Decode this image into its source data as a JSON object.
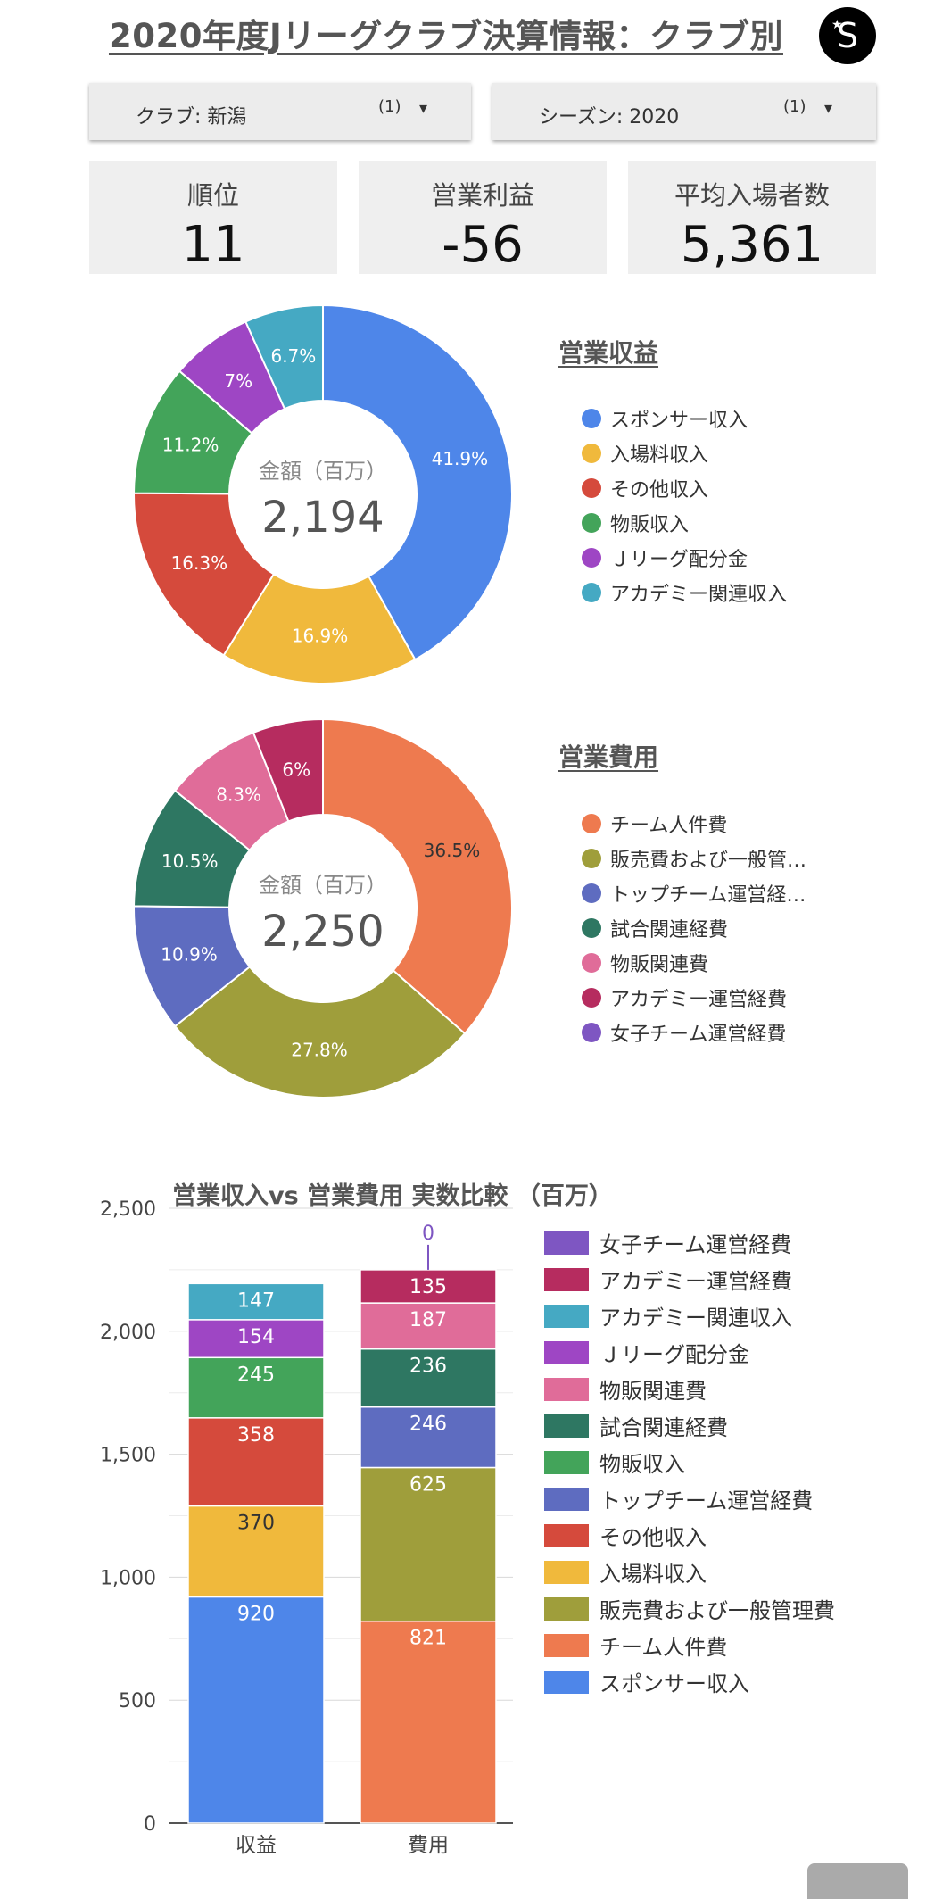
{
  "header": {
    "title": "2020年度Jリーグクラブ決算情報：クラブ別",
    "logo_letter": "S"
  },
  "filters": [
    {
      "label": "クラブ: 新潟",
      "count": "(1)",
      "arrow": "▾"
    },
    {
      "label": "シーズン: 2020",
      "count": "(1)",
      "arrow": "▾"
    }
  ],
  "kpis": [
    {
      "label": "順位",
      "value": "11"
    },
    {
      "label": "営業利益",
      "value": "-56"
    },
    {
      "label": "平均入場者数",
      "value": "5,361"
    }
  ],
  "chart_data": [
    {
      "type": "pie",
      "title": "営業収益",
      "center_label": "金額（百万）",
      "center_value": "2,194",
      "categories": [
        "スポンサー収入",
        "入場料収入",
        "その他収入",
        "物販収入",
        "Ｊリーグ配分金",
        "アカデミー関連収入"
      ],
      "values": [
        41.9,
        16.9,
        16.3,
        11.2,
        7,
        6.7
      ],
      "labels": [
        "41.9%",
        "16.9%",
        "16.3%",
        "11.2%",
        "7%",
        "6.7%"
      ],
      "colors": [
        "#4e86e9",
        "#f0b93c",
        "#d54a3c",
        "#43a45a",
        "#9e46c4",
        "#45a9c3"
      ],
      "legend": [
        "スポンサー収入",
        "入場料収入",
        "その他収入",
        "物販収入",
        "Ｊリーグ配分金",
        "アカデミー関連収入"
      ]
    },
    {
      "type": "pie",
      "title": "営業費用",
      "center_label": "金額（百万）",
      "center_value": "2,250",
      "categories": [
        "チーム人件費",
        "販売費および一般管理費",
        "トップチーム運営経費",
        "試合関連経費",
        "物販関連費",
        "アカデミー運営経費",
        "女子チーム運営経費"
      ],
      "values": [
        36.5,
        27.8,
        10.9,
        10.5,
        8.3,
        6,
        0
      ],
      "labels": [
        "36.5%",
        "27.8%",
        "10.9%",
        "10.5%",
        "8.3%",
        "6%",
        ""
      ],
      "colors": [
        "#ee7a4f",
        "#9f9e3b",
        "#5e6cc0",
        "#2e7762",
        "#e06c99",
        "#b62c5f",
        "#7e56c2"
      ],
      "legend": [
        "チーム人件費",
        "販売費および一般管…",
        "トップチーム運営経…",
        "試合関連経費",
        "物販関連費",
        "アカデミー運営経費",
        "女子チーム運営経費"
      ]
    },
    {
      "type": "bar",
      "stacked": true,
      "title": "営業収入vs 営業費用 実数比較 （百万）",
      "categories": [
        "収益",
        "費用"
      ],
      "ylim": [
        0,
        2500
      ],
      "yticks": [
        0,
        500,
        1000,
        1500,
        2000,
        2500
      ],
      "ytick_labels": [
        "0",
        "500",
        "1,000",
        "1,500",
        "2,000",
        "2,500"
      ],
      "grid": true,
      "stacks": [
        {
          "category": "収益",
          "segments": [
            {
              "name": "スポンサー収入",
              "value": 920,
              "label": "920",
              "color": "#4e86e9"
            },
            {
              "name": "入場料収入",
              "value": 370,
              "label": "370",
              "color": "#f0b93c"
            },
            {
              "name": "その他収入",
              "value": 358,
              "label": "358",
              "color": "#d54a3c"
            },
            {
              "name": "物販収入",
              "value": 245,
              "label": "245",
              "color": "#43a45a"
            },
            {
              "name": "Ｊリーグ配分金",
              "value": 154,
              "label": "154",
              "color": "#9e46c4"
            },
            {
              "name": "アカデミー関連収入",
              "value": 147,
              "label": "147",
              "color": "#45a9c3"
            }
          ]
        },
        {
          "category": "費用",
          "segments": [
            {
              "name": "チーム人件費",
              "value": 821,
              "label": "821",
              "color": "#ee7a4f"
            },
            {
              "name": "販売費および一般管理費",
              "value": 625,
              "label": "625",
              "color": "#9f9e3b"
            },
            {
              "name": "トップチーム運営経費",
              "value": 246,
              "label": "246",
              "color": "#5e6cc0"
            },
            {
              "name": "試合関連経費",
              "value": 236,
              "label": "236",
              "color": "#2e7762"
            },
            {
              "name": "物販関連費",
              "value": 187,
              "label": "187",
              "color": "#e06c99"
            },
            {
              "name": "アカデミー運営経費",
              "value": 135,
              "label": "135",
              "color": "#b62c5f"
            },
            {
              "name": "女子チーム運営経費",
              "value": 0,
              "label": "0",
              "color": "#7e56c2"
            }
          ]
        }
      ],
      "legend": [
        {
          "name": "女子チーム運営経費",
          "color": "#7e56c2"
        },
        {
          "name": "アカデミー運営経費",
          "color": "#b62c5f"
        },
        {
          "name": "アカデミー関連収入",
          "color": "#45a9c3"
        },
        {
          "name": "Ｊリーグ配分金",
          "color": "#9e46c4"
        },
        {
          "name": "物販関連費",
          "color": "#e06c99"
        },
        {
          "name": "試合関連経費",
          "color": "#2e7762"
        },
        {
          "name": "物販収入",
          "color": "#43a45a"
        },
        {
          "name": "トップチーム運営経費",
          "color": "#5e6cc0"
        },
        {
          "name": "その他収入",
          "color": "#d54a3c"
        },
        {
          "name": "入場料収入",
          "color": "#f0b93c"
        },
        {
          "name": "販売費および一般管理費",
          "color": "#9f9e3b"
        },
        {
          "name": "チーム人件費",
          "color": "#ee7a4f"
        },
        {
          "name": "スポンサー収入",
          "color": "#4e86e9"
        }
      ]
    }
  ]
}
